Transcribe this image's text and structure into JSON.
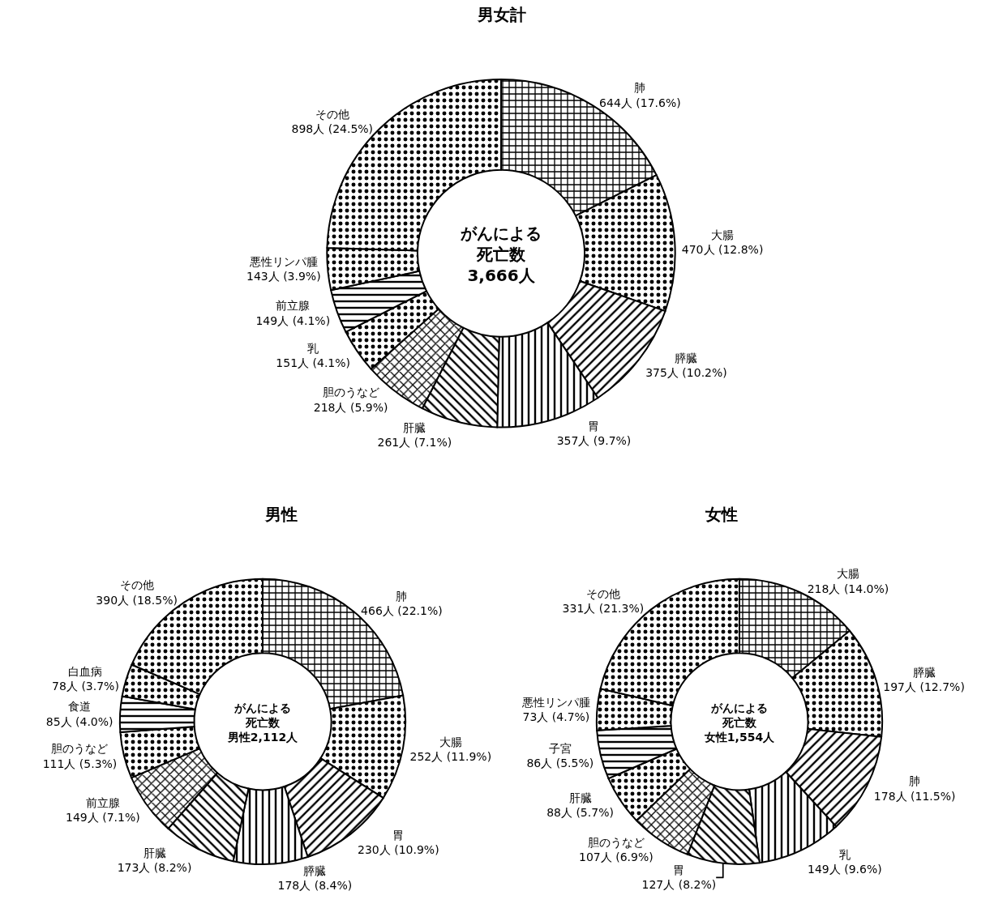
{
  "chart_data": [
    {
      "type": "donut",
      "title": "男女計",
      "categories": [
        "肺",
        "大腸",
        "膵臓",
        "胃",
        "肝臓",
        "胆のうなど",
        "乳",
        "前立腺",
        "悪性リンパ腫",
        "その他"
      ],
      "values": [
        644,
        470,
        375,
        357,
        261,
        218,
        151,
        149,
        143,
        898
      ],
      "value_labels": [
        "644人 (17.6%)",
        "470人 (12.8%)",
        "375人 (10.2%)",
        "357人 (9.7%)",
        "261人 (7.1%)",
        "218人 (5.9%)",
        "151人 (4.1%)",
        "149人 (4.1%)",
        "143人 (3.9%)",
        "898人 (24.5%)"
      ],
      "annotations": [
        "がんによる",
        "死亡数",
        "3,666人"
      ]
    },
    {
      "type": "donut",
      "title": "男性",
      "categories": [
        "肺",
        "大腸",
        "胃",
        "膵臓",
        "肝臓",
        "前立腺",
        "胆のうなど",
        "食道",
        "白血病",
        "その他"
      ],
      "values": [
        466,
        252,
        230,
        178,
        173,
        149,
        111,
        85,
        78,
        390
      ],
      "value_labels": [
        "466人 (22.1%)",
        "252人 (11.9%)",
        "230人 (10.9%)",
        "178人 (8.4%)",
        "173人 (8.2%)",
        "149人 (7.1%)",
        "111人 (5.3%)",
        "85人 (4.0%)",
        "78人 (3.7%)",
        "390人 (18.5%)"
      ],
      "annotations": [
        "がんによる",
        "死亡数",
        "男性2,112人"
      ]
    },
    {
      "type": "donut",
      "title": "女性",
      "categories": [
        "大腸",
        "膵臓",
        "肺",
        "乳",
        "胃",
        "胆のうなど",
        "肝臓",
        "子宮",
        "悪性リンパ腫",
        "その他"
      ],
      "values": [
        218,
        197,
        178,
        149,
        127,
        107,
        88,
        86,
        73,
        331
      ],
      "value_labels": [
        "218人 (14.0%)",
        "197人 (12.7%)",
        "178人 (11.5%)",
        "149人 (9.6%)",
        "127人 (8.2%)",
        "107人 (6.9%)",
        "88人 (5.7%)",
        "86人 (5.5%)",
        "73人 (4.7%)",
        "331人 (21.3%)"
      ],
      "annotations": [
        "がんによる",
        "死亡数",
        "女性1,554人"
      ]
    }
  ]
}
